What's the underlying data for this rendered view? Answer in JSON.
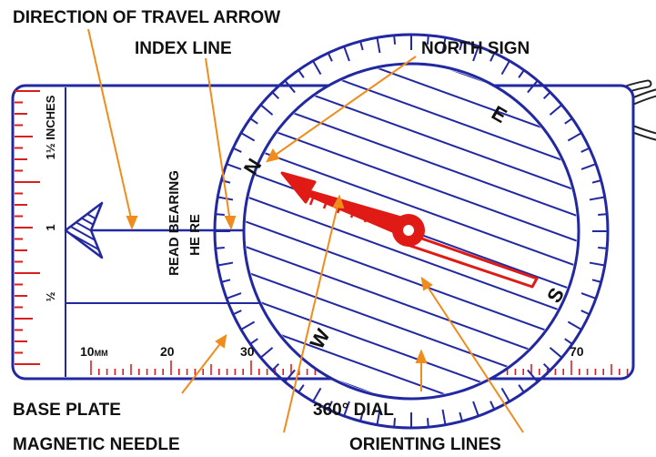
{
  "labels": {
    "direction_of_travel_arrow": "DIRECTION OF TRAVEL ARROW",
    "index_line": "INDEX LINE",
    "north_sign": "NORTH SIGN",
    "base_plate": "BASE PLATE",
    "dial_360": "360° DIAL",
    "magnetic_needle": "MAGNETIC NEEDLE",
    "orienting_lines": "ORIENTING LINES"
  },
  "plate_text": {
    "read_bearing_line1": "READ BEARING",
    "read_bearing_line2": "HE RE"
  },
  "inch_scale": {
    "one_and_half": "1½ INCHES",
    "one": "1",
    "half": "½"
  },
  "mm_scale": {
    "unit_value": "10",
    "unit_suffix": "MM",
    "values": [
      "20",
      "30",
      "70"
    ]
  },
  "dial_letters": {
    "north": "N",
    "east": "E",
    "south": "S",
    "west": "W"
  },
  "colors": {
    "compass_blue": "#2228a0",
    "callout_orange": "#f08c1c",
    "needle_red": "#e01a14",
    "scale_red": "#d81e1e"
  },
  "icons": {
    "lanyard": "lanyard-cord-icon",
    "travel_arrow": "direction-arrow-icon"
  }
}
